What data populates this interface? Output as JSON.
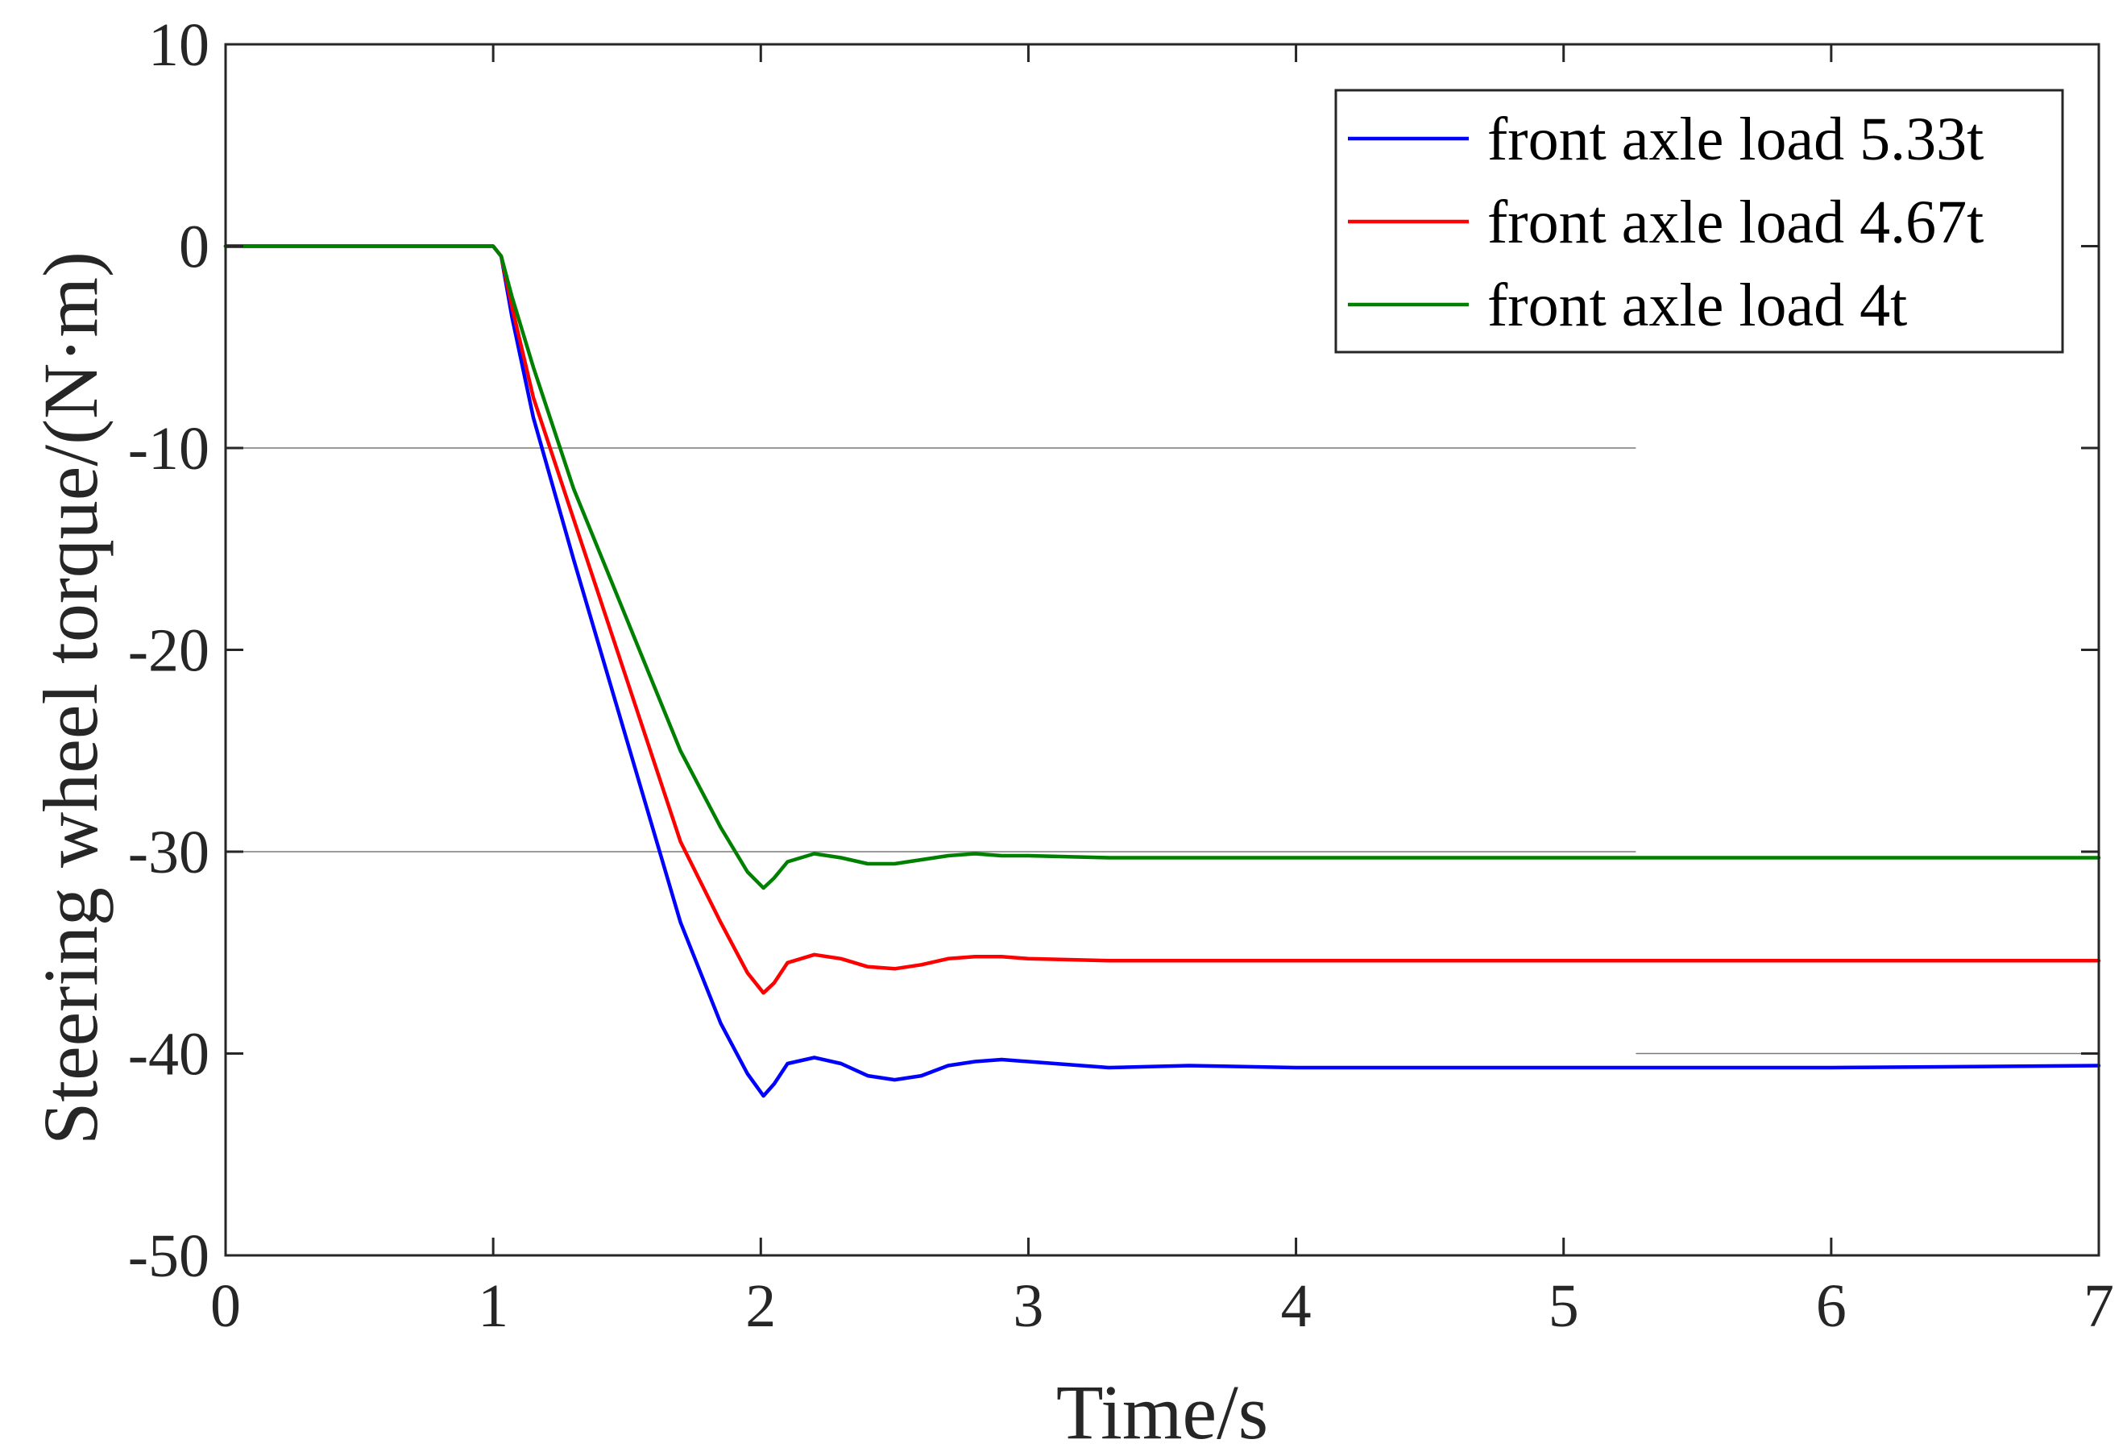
{
  "chart_data": {
    "type": "line",
    "title": "",
    "xlabel": "Time/s",
    "ylabel": "Steering wheel torque/(N·m)",
    "xlim": [
      0,
      7
    ],
    "ylim": [
      -50,
      10
    ],
    "xticks": [
      0,
      1,
      2,
      3,
      4,
      5,
      6,
      7
    ],
    "yticks": [
      10,
      0,
      -10,
      -20,
      -30,
      -40,
      -50
    ],
    "xtick_labels": [
      "0",
      "1",
      "2",
      "3",
      "4",
      "5",
      "6",
      "7"
    ],
    "ytick_labels": [
      "10",
      "0",
      "-10",
      "-20",
      "-30",
      "-40",
      "-50"
    ],
    "grid": false,
    "reference_lines": [
      {
        "y": -10,
        "x_start": 0,
        "x_end": 5.27
      },
      {
        "y": -30,
        "x_start": 0,
        "x_end": 5.27
      },
      {
        "y": -40,
        "x_start": 5.27,
        "x_end": 7
      }
    ],
    "legend_position": "top-right",
    "series": [
      {
        "name": "front axle load 5.33t",
        "color": "#0000ff",
        "x": [
          0,
          1.0,
          1.03,
          1.07,
          1.15,
          1.3,
          1.5,
          1.7,
          1.85,
          1.95,
          2.01,
          2.05,
          2.1,
          2.2,
          2.3,
          2.4,
          2.5,
          2.6,
          2.7,
          2.8,
          2.9,
          3.0,
          3.1,
          3.3,
          3.6,
          4.0,
          5.0,
          6.0,
          7.0
        ],
        "y": [
          0,
          0,
          -0.5,
          -3.5,
          -8.5,
          -15.5,
          -24.5,
          -33.5,
          -38.5,
          -41.0,
          -42.1,
          -41.5,
          -40.5,
          -40.2,
          -40.5,
          -41.1,
          -41.3,
          -41.1,
          -40.6,
          -40.4,
          -40.3,
          -40.4,
          -40.5,
          -40.7,
          -40.6,
          -40.7,
          -40.7,
          -40.7,
          -40.6
        ]
      },
      {
        "name": "front axle load 4.67t",
        "color": "#ff0000",
        "x": [
          0,
          1.0,
          1.03,
          1.07,
          1.15,
          1.3,
          1.5,
          1.7,
          1.85,
          1.95,
          2.01,
          2.05,
          2.1,
          2.2,
          2.3,
          2.4,
          2.5,
          2.6,
          2.7,
          2.8,
          2.9,
          3.0,
          3.3,
          3.6,
          4.0,
          5.0,
          6.0,
          7.0
        ],
        "y": [
          0,
          0,
          -0.5,
          -3.0,
          -7.5,
          -13.5,
          -21.5,
          -29.5,
          -33.5,
          -36.0,
          -37.0,
          -36.5,
          -35.5,
          -35.1,
          -35.3,
          -35.7,
          -35.8,
          -35.6,
          -35.3,
          -35.2,
          -35.2,
          -35.3,
          -35.4,
          -35.4,
          -35.4,
          -35.4,
          -35.4,
          -35.4
        ]
      },
      {
        "name": "front axle load 4t",
        "color": "#008000",
        "x": [
          0,
          1.0,
          1.03,
          1.07,
          1.15,
          1.3,
          1.5,
          1.7,
          1.85,
          1.95,
          2.01,
          2.05,
          2.1,
          2.2,
          2.3,
          2.4,
          2.5,
          2.6,
          2.7,
          2.8,
          2.9,
          3.0,
          3.3,
          3.6,
          4.0,
          5.0,
          6.0,
          7.0
        ],
        "y": [
          0,
          0,
          -0.5,
          -2.5,
          -6.0,
          -12.0,
          -18.5,
          -25.0,
          -28.8,
          -31.0,
          -31.8,
          -31.3,
          -30.5,
          -30.1,
          -30.3,
          -30.6,
          -30.6,
          -30.4,
          -30.2,
          -30.1,
          -30.2,
          -30.2,
          -30.3,
          -30.3,
          -30.3,
          -30.3,
          -30.3,
          -30.3
        ]
      }
    ]
  }
}
